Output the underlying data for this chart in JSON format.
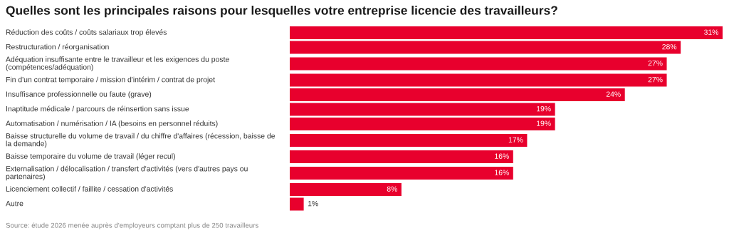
{
  "chart_data": {
    "type": "bar",
    "orientation": "horizontal",
    "title": "Quelles sont les principales raisons pour lesquelles votre entreprise licencie des travailleurs?",
    "categories": [
      "Réduction des coûts / coûts salariaux trop élevés",
      "Restructuration / réorganisation",
      "Adéquation insuffisante entre le travailleur et les exigences du poste (compétences/adéquation)",
      "Fin d'un contrat temporaire / mission d'intérim / contrat de projet",
      "Insuffisance professionnelle ou faute (grave)",
      "Inaptitude médicale / parcours de réinsertion sans issue",
      "Automatisation / numérisation / IA (besoins en personnel réduits)",
      "Baisse structurelle du volume de travail / du chiffre d'affaires (récession, baisse de la demande)",
      "Baisse temporaire du volume de travail (léger recul)",
      "Externalisation / délocalisation / transfert d'activités (vers d'autres pays ou partenaires)",
      "Licenciement collectif / faillite / cessation d'activités",
      "Autre"
    ],
    "values": [
      31,
      28,
      27,
      27,
      24,
      19,
      19,
      17,
      16,
      16,
      8,
      1
    ],
    "value_labels": [
      "31%",
      "28%",
      "27%",
      "27%",
      "24%",
      "19%",
      "19%",
      "17%",
      "16%",
      "16%",
      "8%",
      "1%"
    ],
    "color": "#e8002d",
    "annotations": [
      "Source: étude 2026 menée auprès d'employeurs comptant plus de 250 travailleurs"
    ]
  }
}
